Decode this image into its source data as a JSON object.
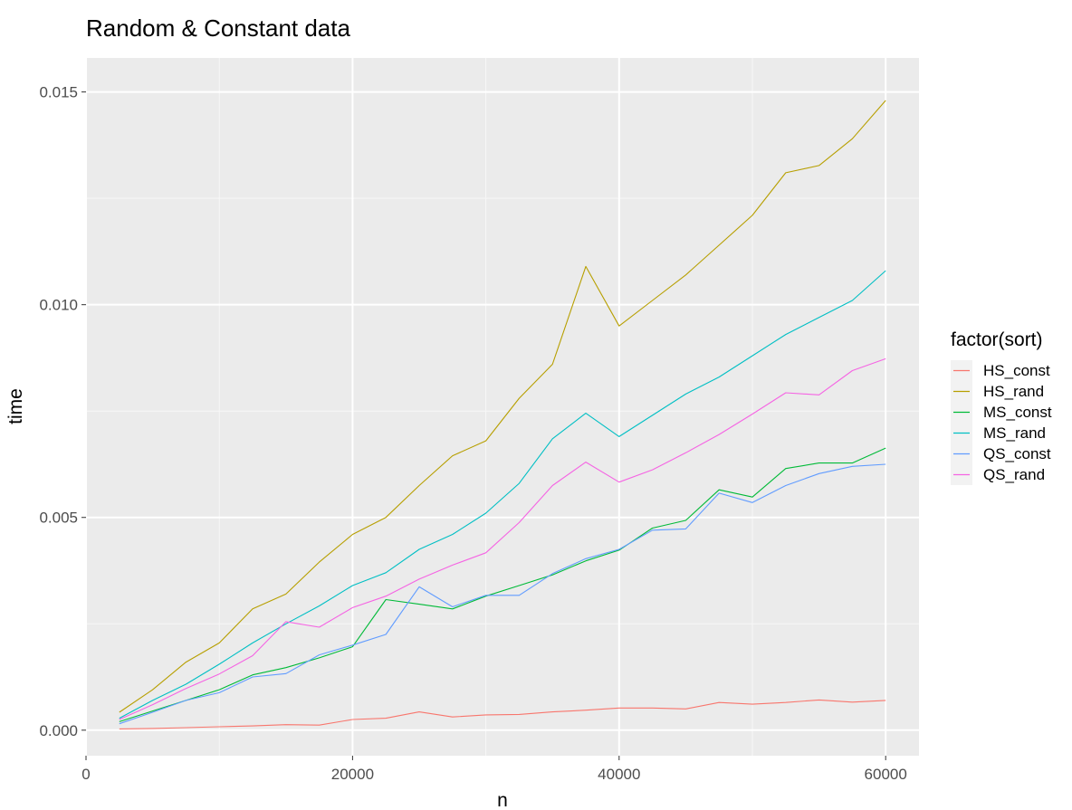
{
  "chart_data": {
    "type": "line",
    "title": "Random & Constant data",
    "xlabel": "n",
    "ylabel": "time",
    "xlim": [
      0,
      62500
    ],
    "ylim": [
      -0.0006,
      0.0158
    ],
    "x_ticks": [
      0,
      20000,
      40000,
      60000
    ],
    "y_ticks": [
      0.0,
      0.005,
      0.01,
      0.015
    ],
    "x_tick_labels": [
      "0",
      "20000",
      "40000",
      "60000"
    ],
    "y_tick_labels": [
      "0.000",
      "0.005",
      "0.010",
      "0.015"
    ],
    "grid": true,
    "legend_title": "factor(sort)",
    "legend_position": "right",
    "panel_background": "#ebebeb",
    "x": [
      2500,
      5000,
      7500,
      10000,
      12500,
      15000,
      17500,
      20000,
      22500,
      25000,
      27500,
      30000,
      32500,
      35000,
      37500,
      40000,
      42500,
      45000,
      47500,
      50000,
      52500,
      55000,
      57500,
      60000
    ],
    "series": [
      {
        "name": "HS_const",
        "color": "#F8766D",
        "values": [
          3e-05,
          4e-05,
          6e-05,
          8e-05,
          0.0001,
          0.00013,
          0.00012,
          0.00025,
          0.00028,
          0.00043,
          0.00031,
          0.00036,
          0.00037,
          0.00043,
          0.00047,
          0.00052,
          0.00052,
          0.0005,
          0.00065,
          0.00061,
          0.00065,
          0.00071,
          0.00066,
          0.0007
        ]
      },
      {
        "name": "HS_rand",
        "color": "#B79F00",
        "values": [
          0.00042,
          0.00095,
          0.0016,
          0.00205,
          0.00285,
          0.0032,
          0.00395,
          0.0046,
          0.005,
          0.00575,
          0.00645,
          0.0068,
          0.0078,
          0.0086,
          0.0109,
          0.0095,
          0.0101,
          0.0107,
          0.0114,
          0.0121,
          0.0131,
          0.01327,
          0.0139,
          0.0148
        ]
      },
      {
        "name": "MS_const",
        "color": "#00BA38",
        "values": [
          0.0002,
          0.00045,
          0.0007,
          0.00095,
          0.0013,
          0.00147,
          0.0017,
          0.00196,
          0.00307,
          0.00296,
          0.00285,
          0.00315,
          0.0034,
          0.00365,
          0.00398,
          0.00423,
          0.00475,
          0.00493,
          0.00565,
          0.00548,
          0.00615,
          0.00628,
          0.00628,
          0.00663
        ]
      },
      {
        "name": "MS_rand",
        "color": "#00BFC4",
        "values": [
          0.00028,
          0.0007,
          0.00108,
          0.00155,
          0.00205,
          0.0025,
          0.00292,
          0.0034,
          0.0037,
          0.00425,
          0.0046,
          0.0051,
          0.0058,
          0.00685,
          0.00745,
          0.0069,
          0.0074,
          0.0079,
          0.0083,
          0.0088,
          0.0093,
          0.0097,
          0.0101,
          0.0108
        ]
      },
      {
        "name": "QS_const",
        "color": "#619CFF",
        "values": [
          0.00015,
          0.00042,
          0.0007,
          0.00088,
          0.00125,
          0.00133,
          0.00177,
          0.002,
          0.00225,
          0.00337,
          0.0029,
          0.00317,
          0.00317,
          0.00368,
          0.00403,
          0.00425,
          0.0047,
          0.00473,
          0.00557,
          0.00535,
          0.00575,
          0.00603,
          0.0062,
          0.00625
        ]
      },
      {
        "name": "QS_rand",
        "color": "#F564E3",
        "values": [
          0.00025,
          0.0006,
          0.00098,
          0.00132,
          0.00175,
          0.00255,
          0.00242,
          0.00288,
          0.00315,
          0.00355,
          0.00388,
          0.00417,
          0.00488,
          0.00575,
          0.0063,
          0.00583,
          0.00612,
          0.00652,
          0.00695,
          0.00743,
          0.00793,
          0.00788,
          0.00845,
          0.00873
        ]
      }
    ]
  }
}
